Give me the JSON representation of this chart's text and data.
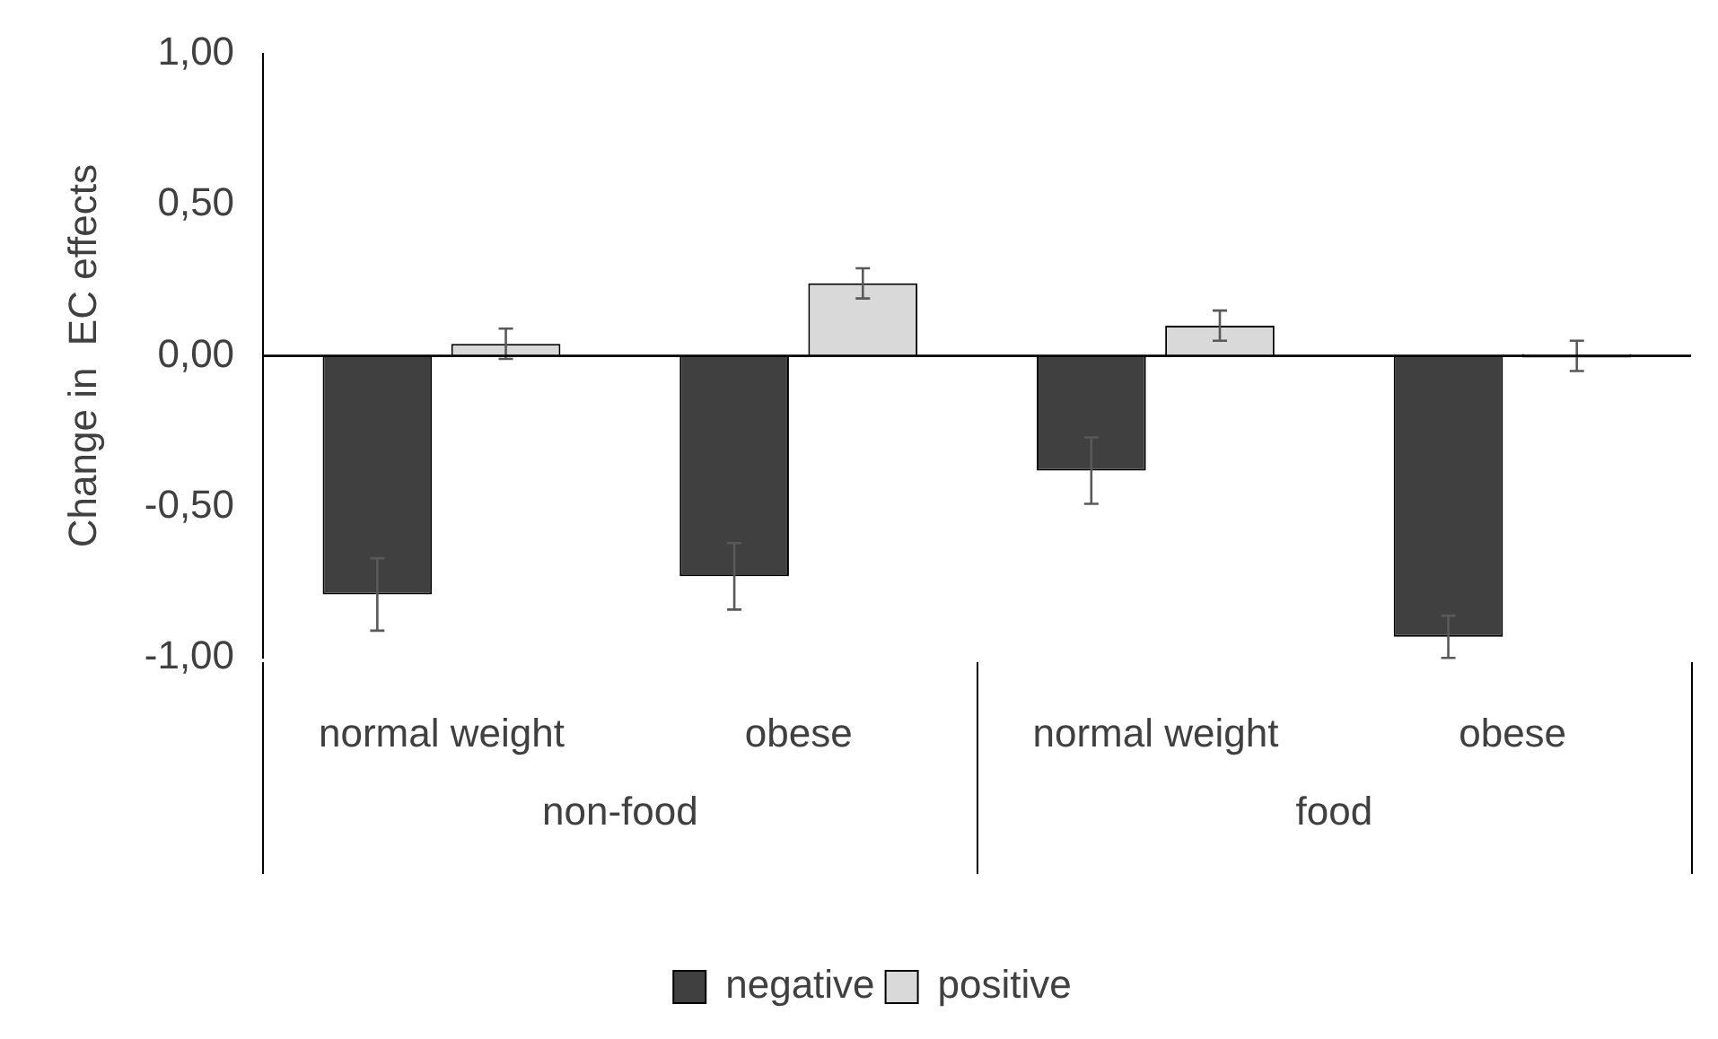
{
  "chart_data": {
    "type": "bar",
    "ylabel": "Change in  EC effects",
    "categories": [
      "normal weight",
      "obese",
      "normal weight",
      "obese"
    ],
    "series": [
      {
        "name": "negative",
        "color": "#404040",
        "values": [
          -0.79,
          -0.73,
          -0.38,
          -0.93
        ],
        "errors": [
          0.12,
          0.11,
          0.11,
          0.07
        ]
      },
      {
        "name": "positive",
        "color": "#d9d9d9",
        "values": [
          0.04,
          0.24,
          0.1,
          0.0
        ],
        "errors": [
          0.05,
          0.05,
          0.05,
          0.05
        ]
      }
    ],
    "annotations": [
      "non-food",
      "food"
    ],
    "ylim": [
      -1,
      1
    ],
    "yticks": [
      {
        "value": 1,
        "label": "1,00"
      },
      {
        "value": 0.5,
        "label": "0,50"
      },
      {
        "value": 0,
        "label": "0,00"
      },
      {
        "value": -0.5,
        "label": "-0,50"
      },
      {
        "value": -1,
        "label": "-1,00"
      }
    ],
    "ref_lines": [
      {
        "axis": "y",
        "value": 0,
        "color": "#000000"
      }
    ],
    "grid": false,
    "legend": "bottom"
  }
}
